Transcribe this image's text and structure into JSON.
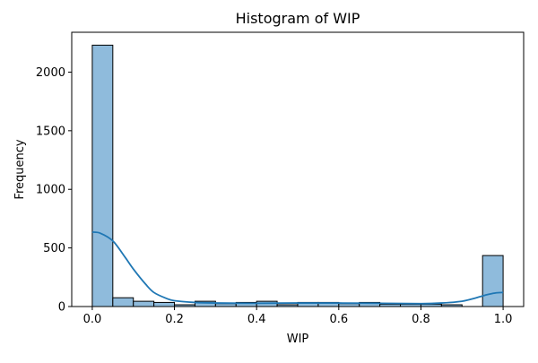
{
  "chart_data": {
    "type": "bar",
    "title": "Histogram of WIP",
    "xlabel": "WIP",
    "ylabel": "Frequency",
    "xlim": [
      -0.05,
      1.05
    ],
    "ylim": [
      0,
      2340
    ],
    "bin_edges": [
      0.0,
      0.05,
      0.1,
      0.15,
      0.2,
      0.25,
      0.3,
      0.35,
      0.4,
      0.45,
      0.5,
      0.55,
      0.6,
      0.65,
      0.7,
      0.75,
      0.8,
      0.85,
      0.9,
      0.95,
      1.0
    ],
    "values": [
      2230,
      75,
      45,
      35,
      15,
      45,
      25,
      35,
      45,
      15,
      35,
      35,
      25,
      35,
      20,
      20,
      20,
      15,
      0,
      435
    ],
    "x_ticks": [
      0.0,
      0.2,
      0.4,
      0.6,
      0.8,
      1.0
    ],
    "x_tick_labels": [
      "0.0",
      "0.2",
      "0.4",
      "0.6",
      "0.8",
      "1.0"
    ],
    "y_ticks": [
      0,
      500,
      1000,
      1500,
      2000
    ],
    "y_tick_labels": [
      "0",
      "500",
      "1000",
      "1500",
      "2000"
    ],
    "kde": {
      "x": [
        0.0,
        0.02,
        0.05,
        0.08,
        0.1,
        0.13,
        0.15,
        0.18,
        0.2,
        0.25,
        0.3,
        0.4,
        0.5,
        0.6,
        0.7,
        0.8,
        0.85,
        0.9,
        0.93,
        0.96,
        0.98,
        1.0
      ],
      "y": [
        635,
        625,
        560,
        420,
        320,
        190,
        120,
        70,
        50,
        35,
        30,
        28,
        30,
        30,
        28,
        25,
        30,
        45,
        70,
        100,
        115,
        120
      ]
    },
    "bar_color": "#8fbbdc",
    "bar_edge_color": "#000000",
    "kde_color": "#1f77b4",
    "grid": false,
    "legend": "none"
  }
}
